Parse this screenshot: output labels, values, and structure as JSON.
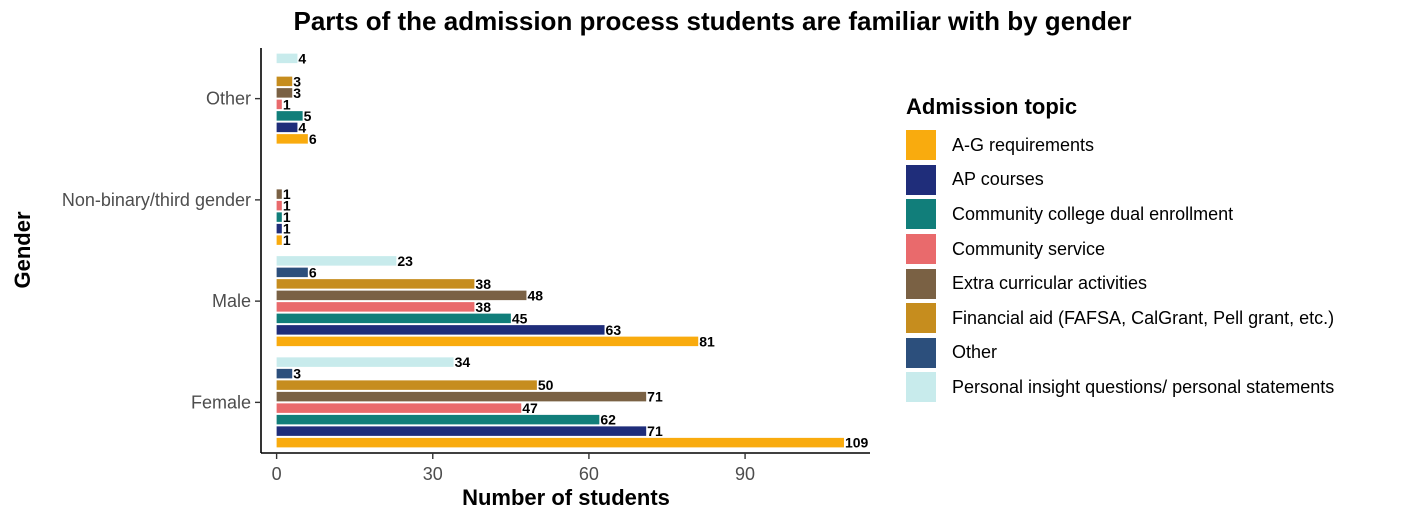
{
  "chart_data": {
    "type": "bar",
    "orientation": "horizontal",
    "title": "Parts of the admission process students are familiar with by gender",
    "xlabel": "Number of students",
    "ylabel": "Gender",
    "xlim": [
      -3,
      114
    ],
    "xticks": [
      0,
      30,
      60,
      90
    ],
    "grid": false,
    "legend_position": "right",
    "legend_title": "Admission topic",
    "categories": [
      "Female",
      "Male",
      "Non-binary/third gender",
      "Other"
    ],
    "series": [
      {
        "name": "A-G requirements",
        "color": "#F9AB0E",
        "values": [
          109,
          81,
          1,
          6
        ]
      },
      {
        "name": "AP courses",
        "color": "#1F2D7A",
        "values": [
          71,
          63,
          1,
          4
        ]
      },
      {
        "name": "Community college dual enrollment",
        "color": "#117E7A",
        "values": [
          62,
          45,
          1,
          5
        ]
      },
      {
        "name": "Community service",
        "color": "#E96A6C",
        "values": [
          47,
          38,
          1,
          1
        ]
      },
      {
        "name": "Extra curricular activities",
        "color": "#7A6144",
        "values": [
          71,
          48,
          1,
          3
        ]
      },
      {
        "name": "Financial aid (FAFSA, CalGrant, Pell grant, etc.)",
        "color": "#C68D1E",
        "values": [
          50,
          38,
          null,
          3
        ]
      },
      {
        "name": "Other",
        "color": "#2C4F7C",
        "values": [
          3,
          6,
          null,
          null
        ]
      },
      {
        "name": "Personal insight questions/ personal statements",
        "color": "#C8EBEC",
        "values": [
          34,
          23,
          null,
          4
        ]
      }
    ]
  }
}
